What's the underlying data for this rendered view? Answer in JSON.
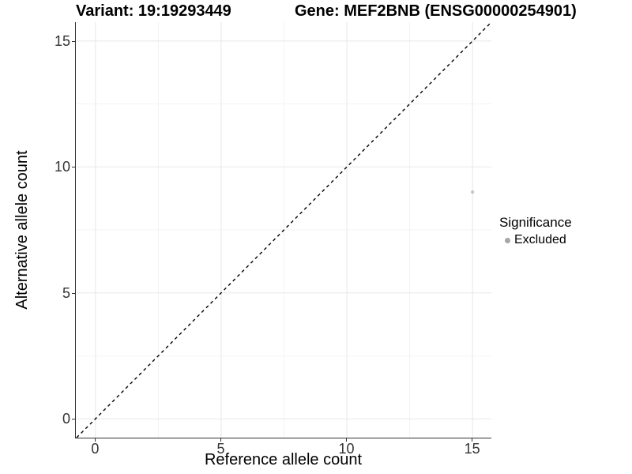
{
  "titles": {
    "variant": "Variant: 19:19293449",
    "gene": "Gene: MEF2BNB (ENSG00000254901)"
  },
  "legend": {
    "title": "Significance",
    "items": [
      {
        "label": "Excluded",
        "color": "#a6a6a6"
      }
    ]
  },
  "colors": {
    "axis_line": "#333333",
    "tick_text": "#333333",
    "grid_major": "#e8e8e8",
    "grid_minor": "#f3f3f3",
    "identity_line": "#000000",
    "point": "#c2c2c2"
  },
  "chart_data": {
    "type": "scatter",
    "title": "Variant: 19:19293449 — Gene: MEF2BNB (ENSG00000254901)",
    "xlabel": "Reference allele count",
    "ylabel": "Alternative allele count",
    "xlim": [
      -0.75,
      15.75
    ],
    "ylim": [
      -0.75,
      15.75
    ],
    "x_ticks": [
      0,
      5,
      10,
      15
    ],
    "y_ticks": [
      0,
      5,
      10,
      15
    ],
    "x_tick_labels": [
      "0",
      "5",
      "10",
      "15"
    ],
    "y_tick_labels": [
      "0",
      "5",
      "10",
      "15"
    ],
    "grid": true,
    "grid_minor_interval": 2.5,
    "legend_position": "right",
    "series": [
      {
        "name": "Excluded",
        "color": "#c2c2c2",
        "point_radius": 2,
        "points": [
          {
            "x": 15,
            "y": 9
          }
        ]
      }
    ],
    "reference_line": {
      "type": "identity",
      "style": "dashed",
      "color": "#000000"
    }
  }
}
